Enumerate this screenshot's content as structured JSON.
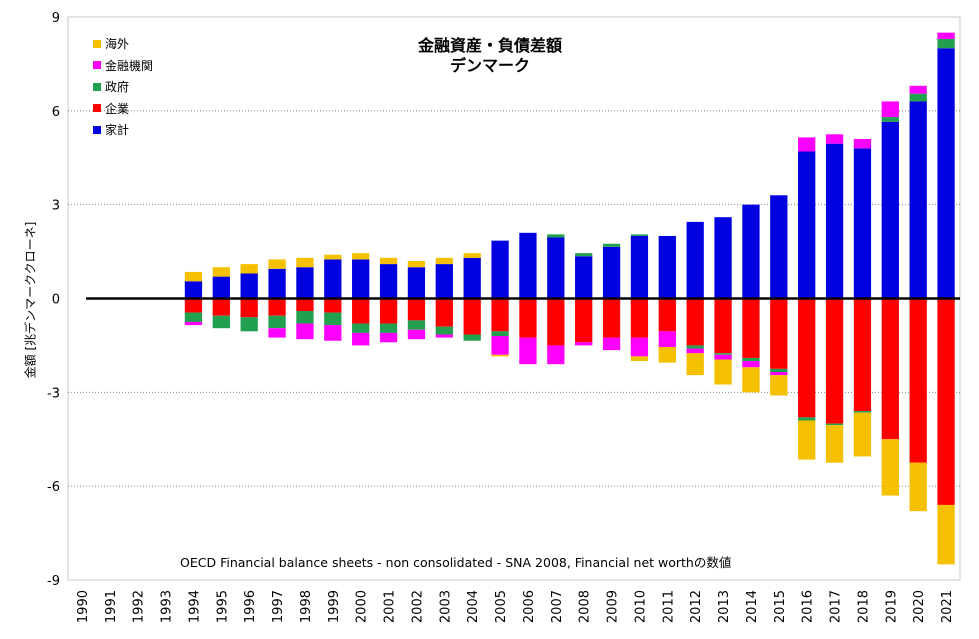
{
  "chart_data": {
    "type": "bar",
    "stacked": true,
    "title": "金融資産・負債差額",
    "subtitle": "デンマーク",
    "ylabel": "金額 [兆デンマーククローネ]",
    "xlabel": "",
    "ylim": [
      -9,
      9
    ],
    "yticks": [
      9,
      6,
      3,
      0,
      -3,
      -6,
      -9
    ],
    "grid": "horizontal dotted",
    "legend_position": "top-left",
    "note": "OECD Financial balance sheets - non consolidated - SNA 2008, Financial net worthの数値",
    "categories": [
      "1990",
      "1991",
      "1992",
      "1993",
      "1994",
      "1995",
      "1996",
      "1997",
      "1998",
      "1999",
      "2000",
      "2001",
      "2002",
      "2003",
      "2004",
      "2005",
      "2006",
      "2007",
      "2008",
      "2009",
      "2010",
      "2011",
      "2012",
      "2013",
      "2014",
      "2015",
      "2016",
      "2017",
      "2018",
      "2019",
      "2020",
      "2021"
    ],
    "series": [
      {
        "name": "海外",
        "color": "#F5C000",
        "values": [
          null,
          null,
          null,
          null,
          0.3,
          0.3,
          0.3,
          0.3,
          0.3,
          0.15,
          0.2,
          0.2,
          0.2,
          0.2,
          0.15,
          -0.05,
          0,
          0,
          0,
          0,
          -0.15,
          -0.5,
          -0.7,
          -0.8,
          -0.8,
          -0.65,
          -1.25,
          -1.2,
          -1.4,
          -1.8,
          -1.55,
          -1.9
        ]
      },
      {
        "name": "金融機関",
        "color": "#FF00FF",
        "values": [
          null,
          null,
          null,
          null,
          -0.1,
          0,
          0,
          -0.3,
          -0.5,
          -0.5,
          -0.4,
          -0.3,
          -0.3,
          -0.1,
          0,
          -0.6,
          -0.85,
          -0.6,
          -0.1,
          -0.4,
          -0.6,
          -0.5,
          -0.15,
          -0.15,
          -0.2,
          -0.1,
          0.45,
          0.3,
          0.3,
          0.5,
          0.25,
          0.2
        ]
      },
      {
        "name": "政府",
        "color": "#22A050",
        "values": [
          null,
          null,
          null,
          null,
          -0.3,
          -0.4,
          -0.45,
          -0.4,
          -0.4,
          -0.4,
          -0.3,
          -0.3,
          -0.3,
          -0.25,
          -0.2,
          -0.15,
          0,
          0.1,
          0.1,
          0.1,
          0.05,
          0,
          -0.1,
          -0.05,
          -0.1,
          -0.1,
          -0.1,
          -0.05,
          -0.05,
          0.15,
          0.25,
          0.3
        ]
      },
      {
        "name": "企業",
        "color": "#FF0000",
        "values": [
          null,
          null,
          null,
          null,
          -0.45,
          -0.55,
          -0.6,
          -0.55,
          -0.4,
          -0.45,
          -0.8,
          -0.8,
          -0.7,
          -0.9,
          -1.15,
          -1.05,
          -1.25,
          -1.5,
          -1.4,
          -1.25,
          -1.25,
          -1.05,
          -1.5,
          -1.75,
          -1.9,
          -2.25,
          -3.8,
          -4.0,
          -3.6,
          -4.5,
          -5.25,
          -6.6
        ]
      },
      {
        "name": "家計",
        "color": "#0000E0",
        "values": [
          null,
          null,
          null,
          null,
          0.55,
          0.7,
          0.8,
          0.95,
          1.0,
          1.25,
          1.25,
          1.1,
          1.0,
          1.1,
          1.3,
          1.85,
          2.1,
          1.95,
          1.35,
          1.65,
          2.0,
          2.0,
          2.45,
          2.6,
          3.0,
          3.3,
          4.7,
          4.95,
          4.8,
          5.65,
          6.3,
          8.0
        ]
      }
    ]
  }
}
